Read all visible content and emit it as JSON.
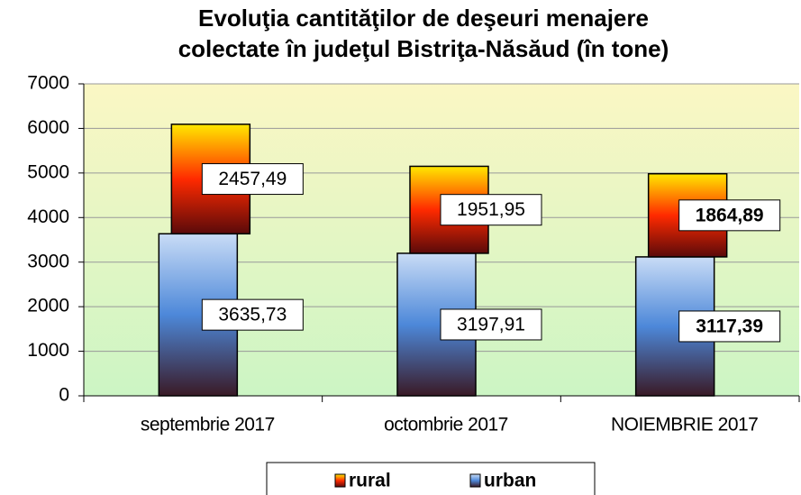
{
  "chart_data": {
    "type": "stacked_bar",
    "title": [
      "Evoluţia cantităţilor de deşeuri menajere",
      "colectate în judeţul Bistriţa-Năsăud (în tone)"
    ],
    "categories": [
      "septembrie 2017",
      "octombrie 2017",
      "NOIEMBRIE 2017"
    ],
    "series": [
      {
        "name": "urban",
        "colors": [
          "#c9dcf6",
          "#4d88d9",
          "#3a1a26"
        ],
        "values": [
          3635.73,
          3197.91,
          3117.39
        ],
        "value_labels": [
          "3635,73",
          "3197,91",
          "3117,39"
        ]
      },
      {
        "name": "rural",
        "colors": [
          "#ffe800",
          "#ff2a00",
          "#5a0a0a"
        ],
        "values": [
          2457.49,
          1951.95,
          1864.89
        ],
        "value_labels": [
          "2457,49",
          "1951,95",
          "1864,89"
        ]
      }
    ],
    "bold_labels": [
      false,
      false,
      true
    ],
    "ylim": [
      0,
      7000
    ],
    "yticks": [
      0,
      1000,
      2000,
      3000,
      4000,
      5000,
      6000,
      7000
    ],
    "grid": true,
    "legend": "bottom"
  }
}
